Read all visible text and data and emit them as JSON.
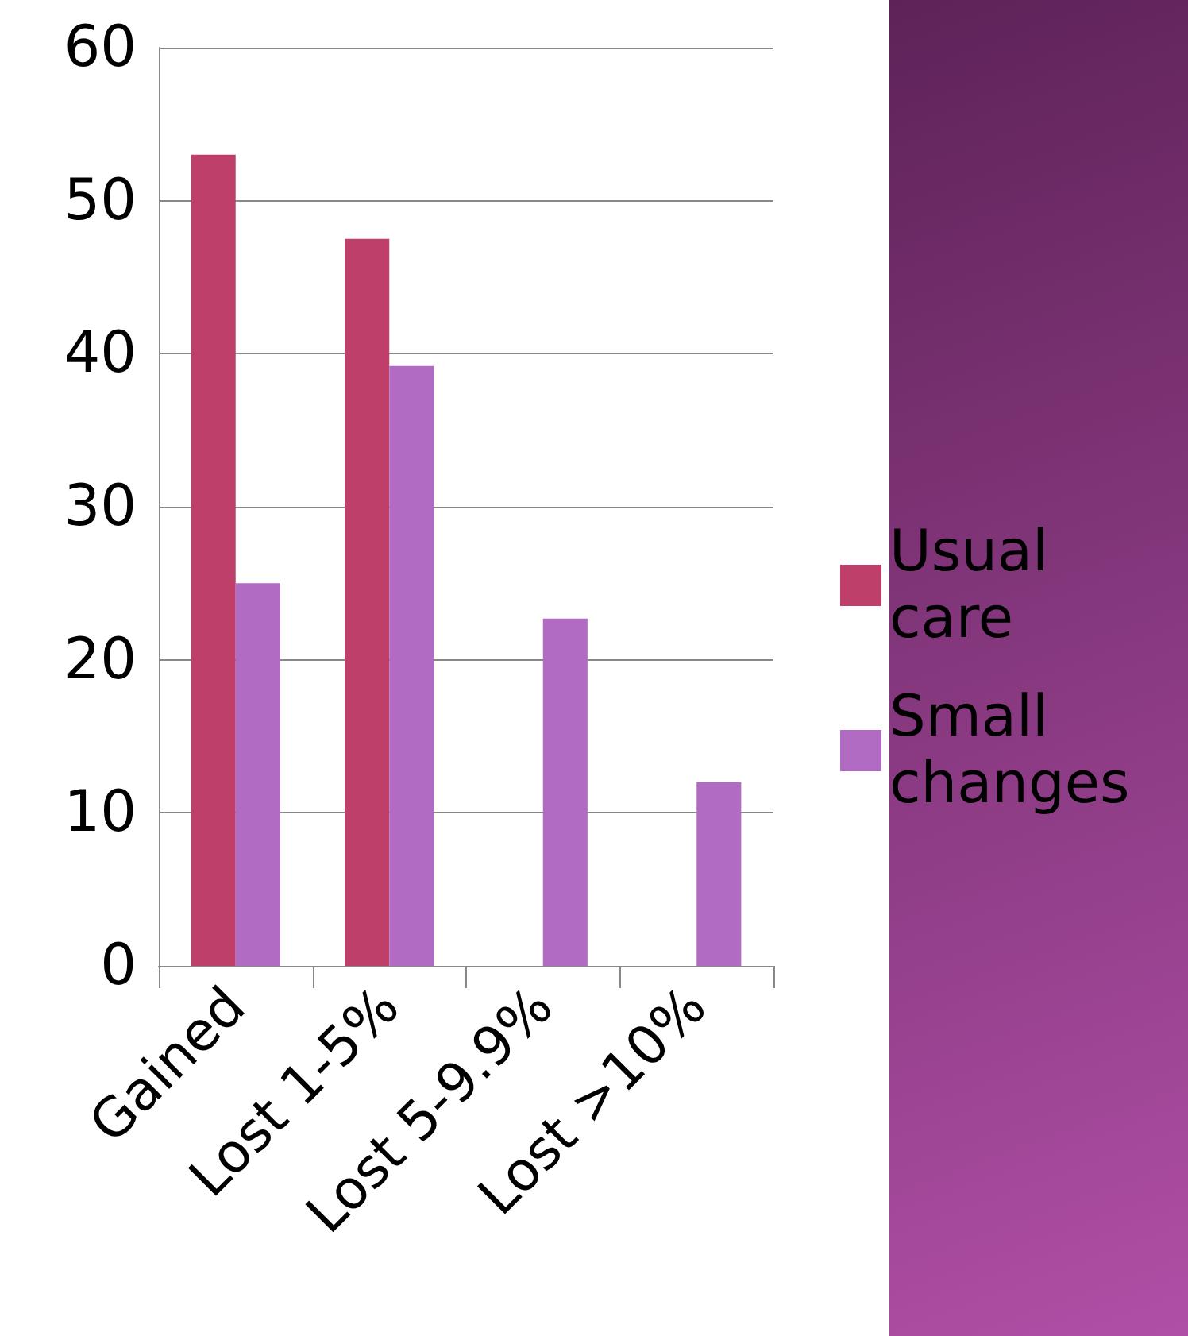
{
  "chart_data": {
    "type": "bar",
    "categories": [
      "Gained",
      "Lost 1-5%",
      "Lost 5-9.9%",
      "Lost >10%"
    ],
    "series": [
      {
        "name": "Usual care",
        "color": "#bf3f6b",
        "values": [
          53,
          47.5,
          0,
          0
        ]
      },
      {
        "name": "Small changes",
        "color": "#b26bc3",
        "values": [
          25,
          39.2,
          22.7,
          12
        ]
      }
    ],
    "ylim": [
      0,
      60
    ],
    "yticks": [
      0,
      10,
      20,
      30,
      40,
      50,
      60
    ],
    "grid": "y",
    "legend": "right"
  }
}
